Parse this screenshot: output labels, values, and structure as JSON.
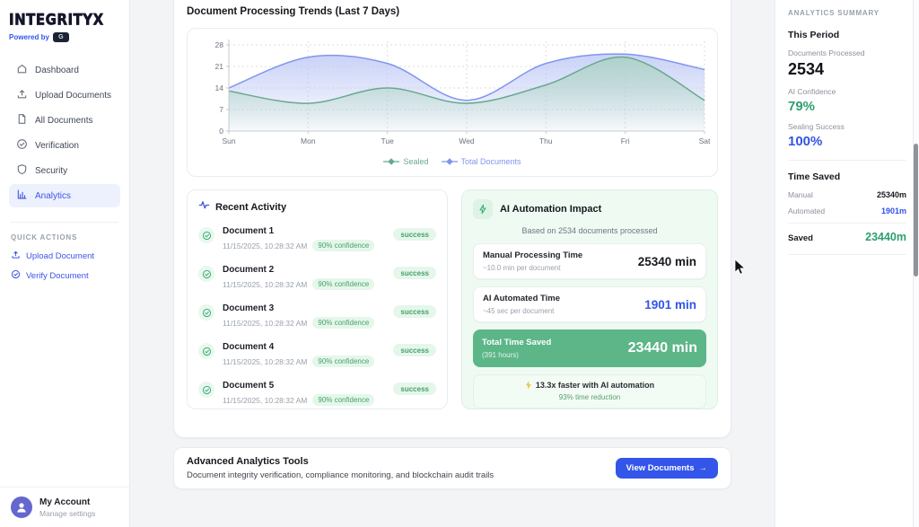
{
  "brand": {
    "logo": "INTEGRITYX",
    "powered_by_label": "Powered by",
    "badge_glyph": "G",
    "badge_icon": "partner-logo-badge"
  },
  "sidebar": {
    "items": [
      {
        "label": "Dashboard",
        "icon": "home-icon",
        "active": false
      },
      {
        "label": "Upload Documents",
        "icon": "upload-icon",
        "active": false
      },
      {
        "label": "All Documents",
        "icon": "documents-icon",
        "active": false
      },
      {
        "label": "Verification",
        "icon": "check-circle-icon",
        "active": false
      },
      {
        "label": "Security",
        "icon": "shield-icon",
        "active": false
      },
      {
        "label": "Analytics",
        "icon": "analytics-icon",
        "active": true
      }
    ],
    "quick_actions_title": "QUICK ACTIONS",
    "quick_actions": [
      {
        "label": "Upload Document",
        "icon": "upload-icon"
      },
      {
        "label": "Verify Document",
        "icon": "check-circle-icon"
      }
    ],
    "account": {
      "name": "My Account",
      "subtitle": "Manage settings",
      "icon": "person-icon"
    }
  },
  "main": {
    "chart_section_title": "Document Processing Trends (Last 7 Days)",
    "recent_activity": {
      "title": "Recent Activity",
      "icon": "activity-pulse-icon",
      "items": [
        {
          "name": "Document 1",
          "timestamp": "11/15/2025, 10:28:32 AM",
          "confidence": "90% confidence",
          "status": "success"
        },
        {
          "name": "Document 2",
          "timestamp": "11/15/2025, 10:28:32 AM",
          "confidence": "90% confidence",
          "status": "success"
        },
        {
          "name": "Document 3",
          "timestamp": "11/15/2025, 10:28:32 AM",
          "confidence": "90% confidence",
          "status": "success"
        },
        {
          "name": "Document 4",
          "timestamp": "11/15/2025, 10:28:32 AM",
          "confidence": "90% confidence",
          "status": "success"
        },
        {
          "name": "Document 5",
          "timestamp": "11/15/2025, 10:28:32 AM",
          "confidence": "90% confidence",
          "status": "success"
        }
      ]
    },
    "ai_impact": {
      "title": "AI Automation Impact",
      "icon": "lightning-icon",
      "subtitle": "Based on 2534 documents processed",
      "manual": {
        "label": "Manual Processing Time",
        "sub": "~10.0 min per document",
        "value": "25340 min"
      },
      "automated": {
        "label": "AI Automated Time",
        "sub": "~45 sec per document",
        "value": "1901 min"
      },
      "saved": {
        "label": "Total Time Saved",
        "sub": "(391 hours)",
        "value": "23440 min"
      },
      "speedup": {
        "headline": "13.3x faster with AI automation",
        "sub": "93% time reduction",
        "icon": "bolt-icon"
      }
    },
    "footer_card": {
      "title": "Advanced Analytics Tools",
      "subtitle": "Document integrity verification, compliance monitoring, and blockchain audit trails",
      "button_label": "View Documents",
      "button_arrow": "→"
    }
  },
  "summary": {
    "title": "ANALYTICS SUMMARY",
    "this_period": {
      "heading": "This Period",
      "documents_label": "Documents Processed",
      "documents_value": "2534",
      "confidence_label": "AI Confidence",
      "confidence_value": "79%",
      "sealing_label": "Sealing Success",
      "sealing_value": "100%"
    },
    "time_saved": {
      "heading": "Time Saved",
      "manual_label": "Manual",
      "manual_value": "25340m",
      "automated_label": "Automated",
      "automated_value": "1901m",
      "saved_label": "Saved",
      "saved_value": "23440m"
    }
  },
  "colors": {
    "accent_blue": "#3154e8",
    "accent_green": "#2f9e6f",
    "saved_card_green": "#5cb688",
    "panel_green_bg": "#effaf3",
    "badge_green_bg": "#e4f7ea",
    "active_nav_bg": "#edf1fd"
  },
  "chart_data": {
    "type": "area",
    "title": "Document Processing Trends (Last 7 Days)",
    "categories": [
      "Sun",
      "Mon",
      "Tue",
      "Wed",
      "Thu",
      "Fri",
      "Sat"
    ],
    "series": [
      {
        "name": "Sealed",
        "color": "#69a98e",
        "fill": "#a9d2bf",
        "values": [
          13,
          9,
          14,
          9,
          15,
          24,
          10
        ]
      },
      {
        "name": "Total Documents",
        "color": "#8095ee",
        "fill": "#bcc7f5",
        "values": [
          14,
          24,
          22,
          10,
          22,
          25,
          20
        ]
      }
    ],
    "xlabel": "",
    "ylabel": "",
    "ylim": [
      0,
      28
    ],
    "yticks": [
      0,
      7,
      14,
      21,
      28
    ],
    "grid": "dotted",
    "legend_position": "bottom"
  }
}
